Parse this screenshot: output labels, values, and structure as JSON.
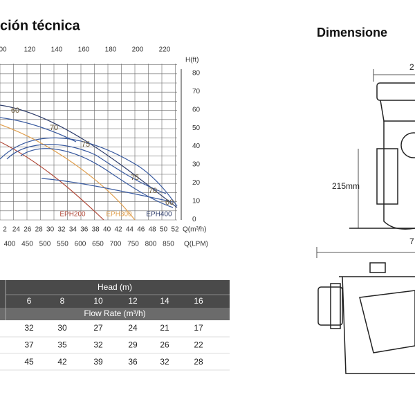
{
  "header": {
    "title": "ción técnica",
    "dimensions_title": "Dimensione"
  },
  "curve_chart": {
    "top_axis": [
      "00",
      "120",
      "140",
      "160",
      "180",
      "200",
      "220"
    ],
    "right_axis_label": "H(ft)",
    "right_axis": [
      "80",
      "70",
      "60",
      "50",
      "40",
      "30",
      "20",
      "10",
      "0"
    ],
    "bottom_axis": [
      "2",
      "24",
      "26",
      "28",
      "30",
      "32",
      "34",
      "36",
      "38",
      "40",
      "42",
      "44",
      "46",
      "48",
      "50",
      "52"
    ],
    "bottom_axis_label": "Q(m³/h)",
    "lpm_axis": [
      "400",
      "450",
      "500",
      "550",
      "600",
      "650",
      "700",
      "750",
      "800",
      "850"
    ],
    "lpm_axis_label": "Q(LPM)",
    "curve_labels": [
      "60",
      "70",
      "75",
      "75",
      "70",
      "60"
    ],
    "model_labels": [
      "EPH200",
      "EPH300",
      "EPH400"
    ]
  },
  "table": {
    "head_label": "Head (m)",
    "heads": [
      "6",
      "8",
      "10",
      "12",
      "14",
      "16"
    ],
    "flow_label": "Flow Rate (m³/h)",
    "rows": [
      [
        "32",
        "30",
        "27",
        "24",
        "21",
        "17"
      ],
      [
        "37",
        "35",
        "32",
        "29",
        "26",
        "22"
      ],
      [
        "45",
        "42",
        "39",
        "36",
        "32",
        "28"
      ]
    ]
  },
  "dimensions": {
    "height": "215mm",
    "top_width": "2",
    "bottom_width": "7"
  }
}
